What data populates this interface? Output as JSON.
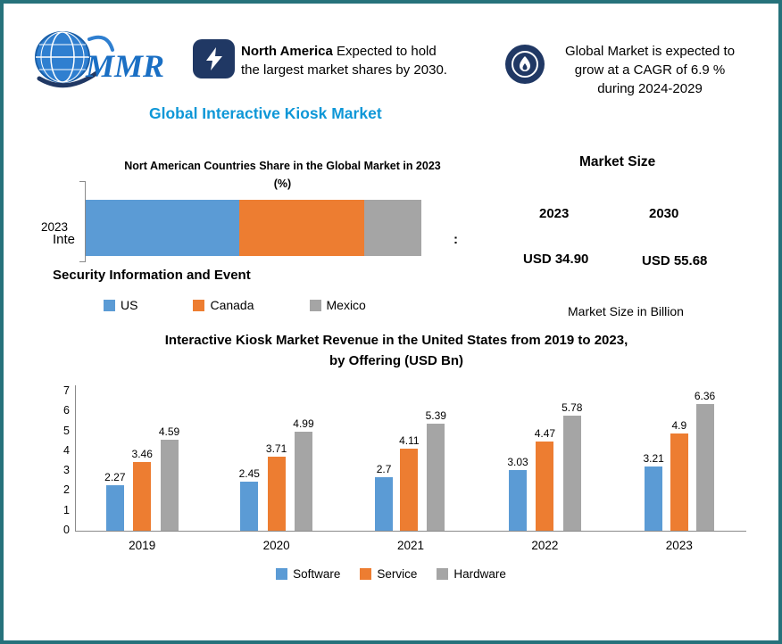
{
  "logo": {
    "text": "MMR"
  },
  "header": {
    "callout1": {
      "bold": "North America",
      "line1_rest": " Expected to hold",
      "line2": "the largest market shares by 2030."
    },
    "callout2": {
      "line1": "Global Market is expected to",
      "line2": "grow at a CAGR of 6.9 %",
      "line3": "during 2024-2029"
    }
  },
  "title": "Global Interactive Kiosk Market",
  "overlay": {
    "fragment_left": "Inte",
    "colon": ":",
    "line2": "Security Information and Event"
  },
  "market_size": {
    "title": "Market Size",
    "years": [
      "2023",
      "2030"
    ],
    "values": [
      "USD 34.90",
      "USD 55.68"
    ],
    "note": "Market Size in Billion"
  },
  "colors": {
    "blue": "#5b9bd5",
    "orange": "#ed7d31",
    "gray": "#a5a5a5",
    "accent_blue": "#0e97d7",
    "badge_navy": "#203864",
    "border_teal": "#26727b"
  },
  "chart_data": [
    {
      "type": "bar",
      "variant": "horizontal-stacked",
      "title_line1": "Nort American Countries Share in the Global Market in 2023",
      "title_line2": "(%)",
      "categories": [
        "2023"
      ],
      "series": [
        {
          "name": "US",
          "value": 45.7,
          "color": "#5b9bd5"
        },
        {
          "name": "Canada",
          "value": 37.3,
          "color": "#ed7d31"
        },
        {
          "name": "Mexico",
          "value": 17.0,
          "color": "#a5a5a5"
        }
      ],
      "legend_position": "bottom",
      "grid": false
    },
    {
      "type": "bar",
      "variant": "grouped-vertical",
      "title_line1": "Interactive Kiosk Market Revenue in the United States from 2019 to 2023,",
      "title_line2": "by Offering (USD Bn)",
      "categories": [
        "2019",
        "2020",
        "2021",
        "2022",
        "2023"
      ],
      "series": [
        {
          "name": "Software",
          "color": "#5b9bd5",
          "values": [
            2.27,
            2.45,
            2.7,
            3.03,
            3.21
          ]
        },
        {
          "name": "Service",
          "color": "#ed7d31",
          "values": [
            3.46,
            3.71,
            4.11,
            4.47,
            4.9
          ]
        },
        {
          "name": "Hardware",
          "color": "#a5a5a5",
          "values": [
            4.59,
            4.99,
            5.39,
            5.78,
            6.36
          ]
        }
      ],
      "ylim": [
        0,
        7
      ],
      "yticks": [
        0,
        1,
        2,
        3,
        4,
        5,
        6,
        7
      ],
      "legend_position": "bottom",
      "grid": false
    }
  ]
}
